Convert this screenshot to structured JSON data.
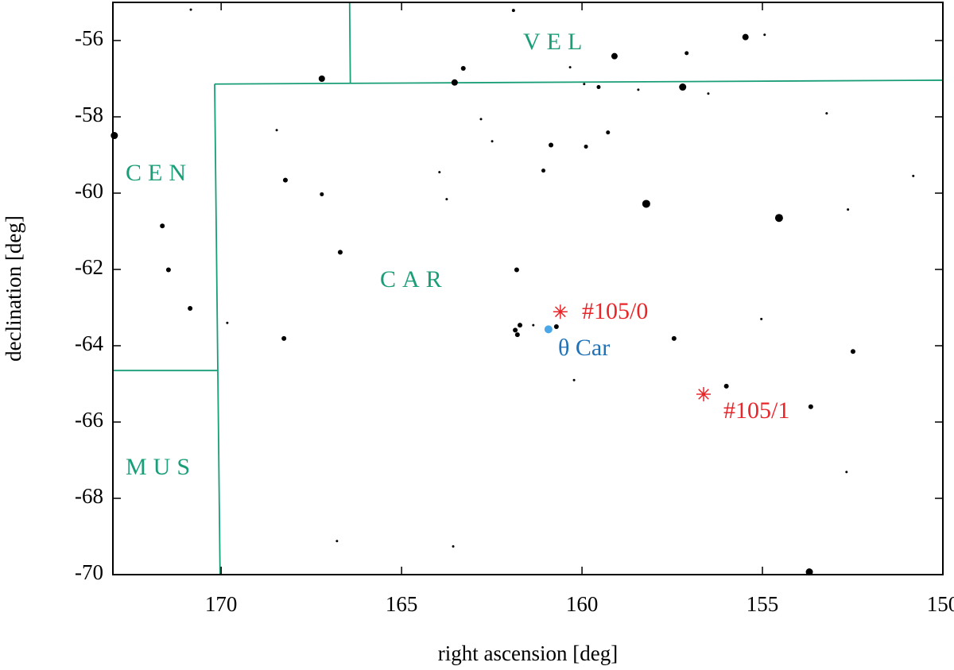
{
  "chart_data": {
    "type": "scatter",
    "xlabel": "right ascension [deg]",
    "ylabel": "declination [deg]",
    "xlim": [
      173,
      150
    ],
    "ylim": [
      -70,
      -55
    ],
    "xticks": [
      170,
      165,
      160,
      155,
      150
    ],
    "yticks": [
      -56,
      -58,
      -60,
      -62,
      -64,
      -66,
      -68,
      -70
    ],
    "constellations": [
      "VEL",
      "CEN",
      "CAR",
      "MUS"
    ],
    "boundary_color": "#1a9e78",
    "boundaries": [
      {
        "x": [
          166.44,
          166.42
        ],
        "y": [
          -55,
          -57.12
        ]
      },
      {
        "x": [
          170.18,
          150
        ],
        "y": [
          -57.14,
          -57.04
        ]
      },
      {
        "x": [
          170.18,
          170.03
        ],
        "y": [
          -57.14,
          -70
        ]
      },
      {
        "x": [
          173,
          170.11
        ],
        "y": [
          -64.65,
          -64.65
        ]
      }
    ],
    "series": [
      {
        "color": "#000000",
        "marker": "dot",
        "x": [
          170.84,
          161.9,
          155.47,
          154.94,
          159.1,
          163.29,
          157.1,
          160.33,
          167.21,
          163.53,
          159.94,
          159.54,
          158.44,
          157.21,
          156.5,
          153.22,
          172.96,
          168.46,
          162.8,
          162.49,
          160.86,
          159.89,
          159.28,
          163.95,
          161.07,
          168.22,
          163.75,
          167.21,
          158.22,
          154.54,
          152.63,
          150.82,
          171.63,
          166.7,
          171.46,
          161.81,
          170.86,
          169.83,
          168.26,
          161.85,
          161.72,
          161.79,
          161.35,
          160.71,
          155.03,
          157.45,
          152.49,
          160.22,
          156.0,
          153.66,
          152.67,
          166.79,
          163.57,
          153.7
        ],
        "values": [
          -55.19,
          -55.21,
          -55.91,
          -55.85,
          -56.41,
          -56.73,
          -56.33,
          -56.7,
          -57.0,
          -57.1,
          -57.14,
          -57.22,
          -57.29,
          -57.22,
          -57.39,
          -57.91,
          -58.49,
          -58.35,
          -58.06,
          -58.64,
          -58.74,
          -58.78,
          -58.41,
          -59.45,
          -59.41,
          -59.66,
          -60.16,
          -60.03,
          -60.28,
          -60.65,
          -60.43,
          -59.55,
          -60.86,
          -61.55,
          -62.01,
          -62.01,
          -63.02,
          -63.4,
          -63.81,
          -63.59,
          -63.46,
          -63.71,
          -63.46,
          -63.5,
          -63.3,
          -63.81,
          -64.15,
          -64.9,
          -65.06,
          -65.6,
          -67.31,
          -69.12,
          -69.26,
          -69.93
        ],
        "sizes": [
          1.5,
          2,
          4,
          1.5,
          4,
          3,
          2.5,
          1.5,
          4,
          4,
          1.5,
          2.5,
          1.5,
          4.5,
          1.5,
          1.5,
          4.5,
          1.5,
          1.5,
          1.5,
          3,
          2.5,
          2.5,
          1.5,
          2.5,
          3,
          1.5,
          2.5,
          5,
          5,
          1.5,
          1.5,
          3,
          3,
          3,
          3,
          3,
          1.5,
          3,
          3,
          3,
          3,
          1.5,
          3,
          1.5,
          3,
          3,
          1.5,
          3,
          3,
          1.5,
          1.5,
          1.5,
          4.5
        ]
      },
      {
        "name": "θ Car",
        "color": "#4aa8e8",
        "marker": "dot",
        "x": [
          160.93
        ],
        "values": [
          -63.57
        ],
        "sizes": [
          5
        ]
      },
      {
        "color": "#e8262a",
        "marker": "asterisk",
        "x": [
          160.6,
          156.63
        ],
        "values": [
          -63.11,
          -65.27
        ],
        "labels": [
          "#105/0",
          "#105/1"
        ]
      }
    ]
  }
}
